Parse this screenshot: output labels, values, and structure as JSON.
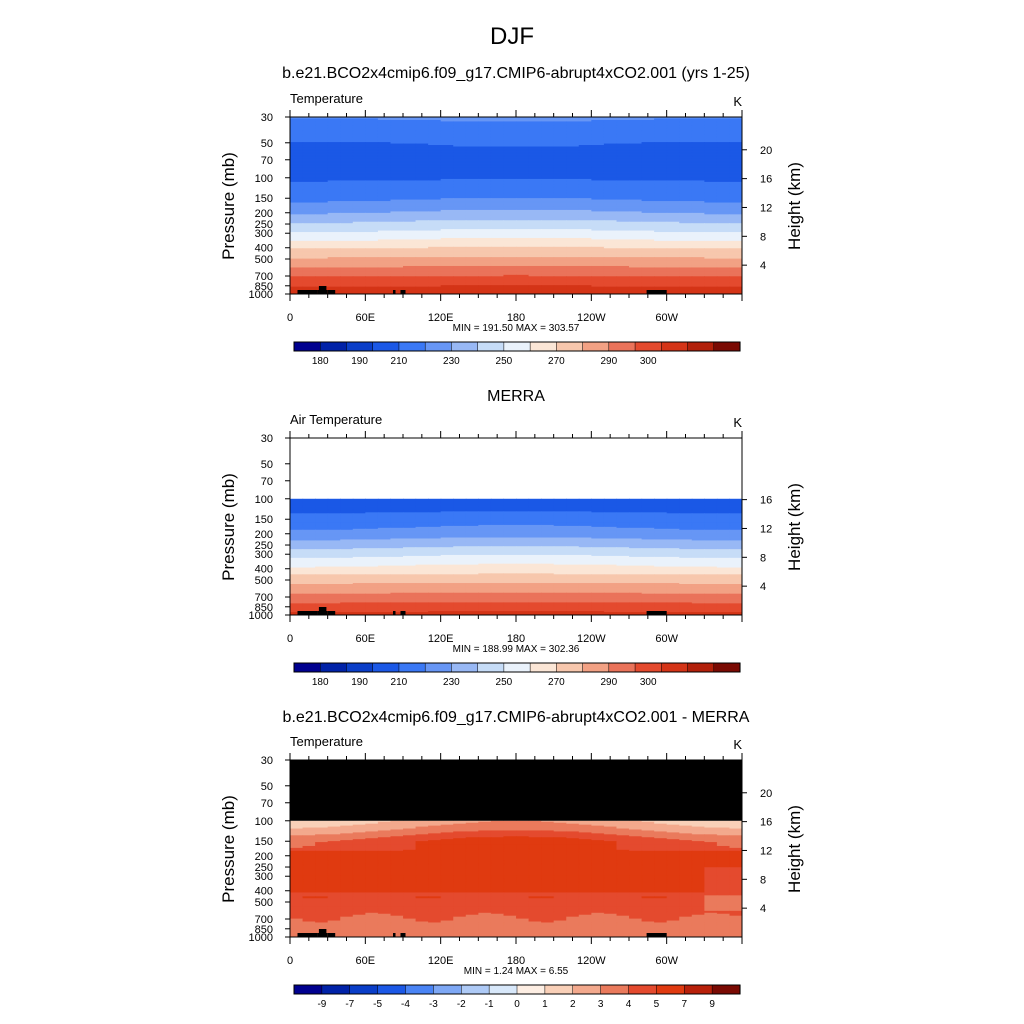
{
  "figure": {
    "title": "DJF"
  },
  "colors": {
    "abs_palette": [
      "#00008f",
      "#0022a8",
      "#0a3ec8",
      "#1b58e6",
      "#3a78f5",
      "#6796f5",
      "#98b8f5",
      "#c6dcf7",
      "#eaf2fb",
      "#fbe6d6",
      "#f7c7ad",
      "#f2a184",
      "#ea735a",
      "#e44a2e",
      "#d43417",
      "#b2200a",
      "#7a0a03"
    ],
    "diff_palette": [
      "#00008f",
      "#0022a8",
      "#0a3ec8",
      "#1b58e6",
      "#4a84f5",
      "#7ea8f5",
      "#aecaf6",
      "#d8e8fa",
      "#fdeee3",
      "#f9d0b8",
      "#f3a98d",
      "#ea7a5c",
      "#e44a2e",
      "#e03a10",
      "#b8200a",
      "#7a0a03"
    ]
  },
  "chart_data": [
    {
      "type": "heatmap",
      "title": "b.e21.BCO2x4cmip6.f09_g17.CMIP6-abrupt4xCO2.001 (yrs 1-25)",
      "left_label": "Temperature",
      "units": "K",
      "ylabel": "Pressure (mb)",
      "y2label": "Height (km)",
      "stats": "MIN = 191.50  MAX = 303.57",
      "min": 191.5,
      "max": 303.57,
      "y_ticks": [
        "30",
        "50",
        "70",
        "100",
        "150",
        "200",
        "250",
        "300",
        "400",
        "500",
        "700",
        "850",
        "1000"
      ],
      "y_tick_values": [
        30,
        50,
        70,
        100,
        150,
        200,
        250,
        300,
        400,
        500,
        700,
        850,
        1000
      ],
      "height_ticks": [
        "20",
        "16",
        "12",
        "8",
        "4"
      ],
      "height_tick_km": [
        20,
        16,
        12,
        8,
        4
      ],
      "x_ticks": [
        "0",
        "60E",
        "120E",
        "180",
        "120W",
        "60W"
      ],
      "x_tick_lon": [
        0,
        60,
        120,
        180,
        240,
        300
      ],
      "xlim": [
        0,
        360
      ],
      "ylim": [
        1000,
        30
      ],
      "colorbar_labels": [
        "180",
        "190",
        "210",
        "230",
        "250",
        "270",
        "290",
        "300"
      ],
      "levels": [
        {
          "p": 30,
          "v": 212
        },
        {
          "p": 45,
          "v": 206
        },
        {
          "p": 50,
          "v": 203
        },
        {
          "p": 70,
          "v": 201
        },
        {
          "p": 100,
          "v": 202
        },
        {
          "p": 150,
          "v": 210
        },
        {
          "p": 200,
          "v": 220
        },
        {
          "p": 250,
          "v": 230
        },
        {
          "p": 300,
          "v": 238
        },
        {
          "p": 400,
          "v": 252
        },
        {
          "p": 500,
          "v": 262
        },
        {
          "p": 700,
          "v": 277
        },
        {
          "p": 850,
          "v": 285
        },
        {
          "p": 1000,
          "v": 293
        }
      ]
    },
    {
      "type": "heatmap",
      "title": "MERRA",
      "left_label": "Air Temperature",
      "units": "K",
      "ylabel": "Pressure (mb)",
      "y2label": "Height (km)",
      "stats": "MIN = 188.99  MAX = 302.36",
      "min": 188.99,
      "max": 302.36,
      "y_ticks": [
        "30",
        "50",
        "70",
        "100",
        "150",
        "200",
        "250",
        "300",
        "400",
        "500",
        "700",
        "850",
        "1000"
      ],
      "y_tick_values": [
        30,
        50,
        70,
        100,
        150,
        200,
        250,
        300,
        400,
        500,
        700,
        850,
        1000
      ],
      "height_ticks": [
        "16",
        "12",
        "8",
        "4"
      ],
      "height_tick_km": [
        16,
        12,
        8,
        4
      ],
      "x_ticks": [
        "0",
        "60E",
        "120E",
        "180",
        "120W",
        "60W"
      ],
      "x_tick_lon": [
        0,
        60,
        120,
        180,
        240,
        300
      ],
      "xlim": [
        0,
        360
      ],
      "ylim": [
        1000,
        30
      ],
      "colorbar_labels": [
        "180",
        "190",
        "210",
        "230",
        "250",
        "270",
        "290",
        "300"
      ],
      "data_top_p": 100,
      "levels": [
        {
          "p": 100,
          "v": 197
        },
        {
          "p": 150,
          "v": 206
        },
        {
          "p": 200,
          "v": 215
        },
        {
          "p": 250,
          "v": 225
        },
        {
          "p": 300,
          "v": 234
        },
        {
          "p": 400,
          "v": 247
        },
        {
          "p": 500,
          "v": 258
        },
        {
          "p": 700,
          "v": 272
        },
        {
          "p": 850,
          "v": 281
        },
        {
          "p": 1000,
          "v": 288
        }
      ]
    },
    {
      "type": "heatmap",
      "title": "b.e21.BCO2x4cmip6.f09_g17.CMIP6-abrupt4xCO2.001 - MERRA",
      "left_label": "Temperature",
      "units": "K",
      "ylabel": "Pressure (mb)",
      "y2label": "Height (km)",
      "stats": "MIN =   1.24  MAX =   6.55",
      "min": 1.24,
      "max": 6.55,
      "y_ticks": [
        "30",
        "50",
        "70",
        "100",
        "150",
        "200",
        "250",
        "300",
        "400",
        "500",
        "700",
        "850",
        "1000"
      ],
      "y_tick_values": [
        30,
        50,
        70,
        100,
        150,
        200,
        250,
        300,
        400,
        500,
        700,
        850,
        1000
      ],
      "height_ticks": [
        "20",
        "16",
        "12",
        "8",
        "4"
      ],
      "height_tick_km": [
        20,
        16,
        12,
        8,
        4
      ],
      "x_ticks": [
        "0",
        "60E",
        "120E",
        "180",
        "120W",
        "60W"
      ],
      "x_tick_lon": [
        0,
        60,
        120,
        180,
        240,
        300
      ],
      "xlim": [
        0,
        360
      ],
      "ylim": [
        1000,
        30
      ],
      "colorbar_labels": [
        "-9",
        "-7",
        "-5",
        "-4",
        "-3",
        "-2",
        "-1",
        "0",
        "1",
        "2",
        "3",
        "4",
        "5",
        "7",
        "9"
      ],
      "missing_above_p": 100,
      "levels": [
        {
          "p": 100,
          "v": 2.5
        },
        {
          "p": 120,
          "v": 3.5
        },
        {
          "p": 150,
          "v": 5.2
        },
        {
          "p": 200,
          "v": 5.4
        },
        {
          "p": 300,
          "v": 5.3
        },
        {
          "p": 400,
          "v": 5.1
        },
        {
          "p": 500,
          "v": 4.4
        },
        {
          "p": 600,
          "v": 4.6
        },
        {
          "p": 700,
          "v": 3.8
        },
        {
          "p": 850,
          "v": 3.3
        },
        {
          "p": 1000,
          "v": 3.0
        }
      ]
    }
  ]
}
